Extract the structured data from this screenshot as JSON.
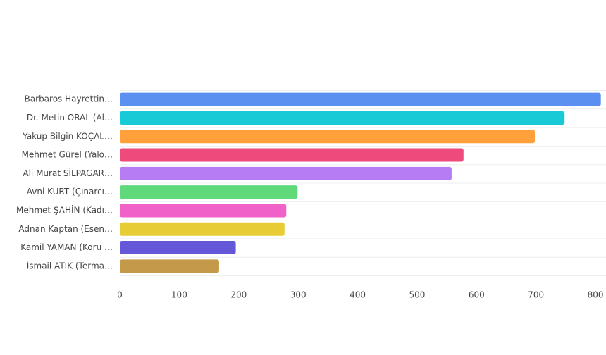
{
  "chart_data": {
    "type": "hbar",
    "categories": [
      "Barbaros Hayrettin…",
      "Dr. Metin ORAL (Al…",
      "Yakup Bilgin KOÇAL…",
      "Mehmet Gürel (Yalo…",
      "Ali Murat SİLPAGAR…",
      "Avni KURT (Çınarcı…",
      "Mehmet ŞAHİN (Kadı…",
      "Adnan Kaptan (Esen…",
      "Kamil YAMAN (Koru …",
      "İsmail ATİK (Terma…"
    ],
    "values": [
      809,
      748,
      698,
      578,
      558,
      299,
      280,
      277,
      195,
      167
    ],
    "colors": [
      "#5b8ff0",
      "#18c9d6",
      "#ffa03a",
      "#ee4a7b",
      "#b57cf4",
      "#5fd97a",
      "#f062c8",
      "#e8cc35",
      "#6457d8",
      "#c49a4a"
    ],
    "xlim": [
      0,
      820
    ],
    "xticks": [
      0,
      100,
      200,
      300,
      400,
      500,
      600,
      700,
      800
    ]
  }
}
